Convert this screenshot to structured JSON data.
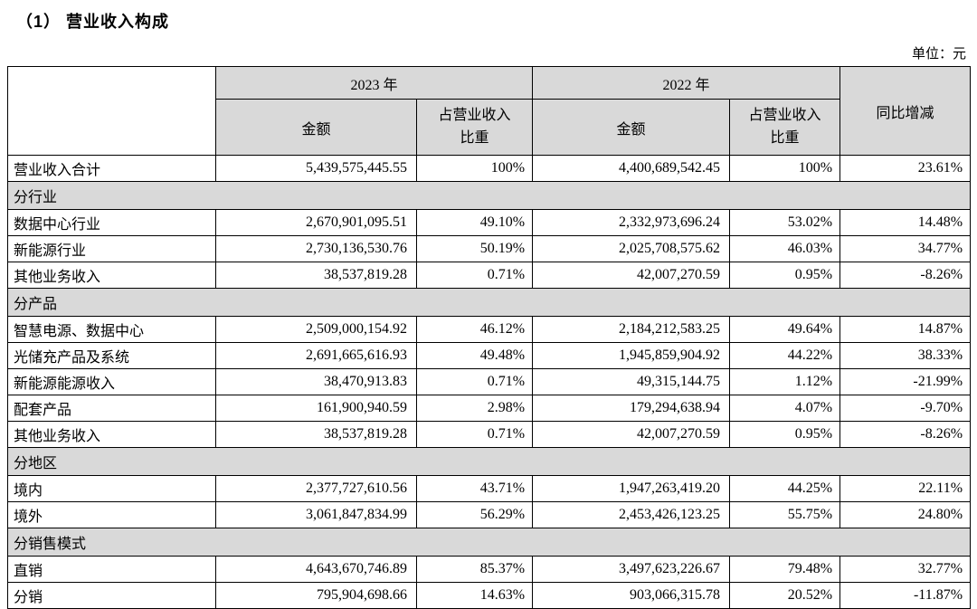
{
  "page": {
    "title": "（1） 营业收入构成",
    "unit_note": "单位：元"
  },
  "table": {
    "header": {
      "year_2023": "2023 年",
      "year_2022": "2022 年",
      "amount_label": "金额",
      "ratio_label": "占营业收入比重",
      "yoy_label": "同比增减"
    },
    "rows": [
      {
        "type": "data",
        "label": "营业收入合计",
        "amount_2023": "5,439,575,445.55",
        "ratio_2023": "100%",
        "amount_2022": "4,400,689,542.45",
        "ratio_2022": "100%",
        "yoy": "23.61%"
      },
      {
        "type": "section",
        "label": "分行业"
      },
      {
        "type": "data",
        "label": "数据中心行业",
        "amount_2023": "2,670,901,095.51",
        "ratio_2023": "49.10%",
        "amount_2022": "2,332,973,696.24",
        "ratio_2022": "53.02%",
        "yoy": "14.48%"
      },
      {
        "type": "data",
        "label": "新能源行业",
        "amount_2023": "2,730,136,530.76",
        "ratio_2023": "50.19%",
        "amount_2022": "2,025,708,575.62",
        "ratio_2022": "46.03%",
        "yoy": "34.77%"
      },
      {
        "type": "data",
        "label": "其他业务收入",
        "amount_2023": "38,537,819.28",
        "ratio_2023": "0.71%",
        "amount_2022": "42,007,270.59",
        "ratio_2022": "0.95%",
        "yoy": "-8.26%"
      },
      {
        "type": "section",
        "label": "分产品"
      },
      {
        "type": "data",
        "label": "智慧电源、数据中心",
        "amount_2023": "2,509,000,154.92",
        "ratio_2023": "46.12%",
        "amount_2022": "2,184,212,583.25",
        "ratio_2022": "49.64%",
        "yoy": "14.87%"
      },
      {
        "type": "data",
        "label": "光储充产品及系统",
        "amount_2023": "2,691,665,616.93",
        "ratio_2023": "49.48%",
        "amount_2022": "1,945,859,904.92",
        "ratio_2022": "44.22%",
        "yoy": "38.33%"
      },
      {
        "type": "data",
        "label": "新能源能源收入",
        "amount_2023": "38,470,913.83",
        "ratio_2023": "0.71%",
        "amount_2022": "49,315,144.75",
        "ratio_2022": "1.12%",
        "yoy": "-21.99%"
      },
      {
        "type": "data",
        "label": "配套产品",
        "amount_2023": "161,900,940.59",
        "ratio_2023": "2.98%",
        "amount_2022": "179,294,638.94",
        "ratio_2022": "4.07%",
        "yoy": "-9.70%"
      },
      {
        "type": "data",
        "label": "其他业务收入",
        "amount_2023": "38,537,819.28",
        "ratio_2023": "0.71%",
        "amount_2022": "42,007,270.59",
        "ratio_2022": "0.95%",
        "yoy": "-8.26%"
      },
      {
        "type": "section",
        "label": "分地区"
      },
      {
        "type": "data",
        "label": "境内",
        "amount_2023": "2,377,727,610.56",
        "ratio_2023": "43.71%",
        "amount_2022": "1,947,263,419.20",
        "ratio_2022": "44.25%",
        "yoy": "22.11%"
      },
      {
        "type": "data",
        "label": "境外",
        "amount_2023": "3,061,847,834.99",
        "ratio_2023": "56.29%",
        "amount_2022": "2,453,426,123.25",
        "ratio_2022": "55.75%",
        "yoy": "24.80%"
      },
      {
        "type": "section",
        "label": "分销售模式"
      },
      {
        "type": "data",
        "label": "直销",
        "amount_2023": "4,643,670,746.89",
        "ratio_2023": "85.37%",
        "amount_2022": "3,497,623,226.67",
        "ratio_2022": "79.48%",
        "yoy": "32.77%"
      },
      {
        "type": "data",
        "label": "分销",
        "amount_2023": "795,904,698.66",
        "ratio_2023": "14.63%",
        "amount_2022": "903,066,315.78",
        "ratio_2022": "20.52%",
        "yoy": "-11.87%"
      }
    ]
  }
}
